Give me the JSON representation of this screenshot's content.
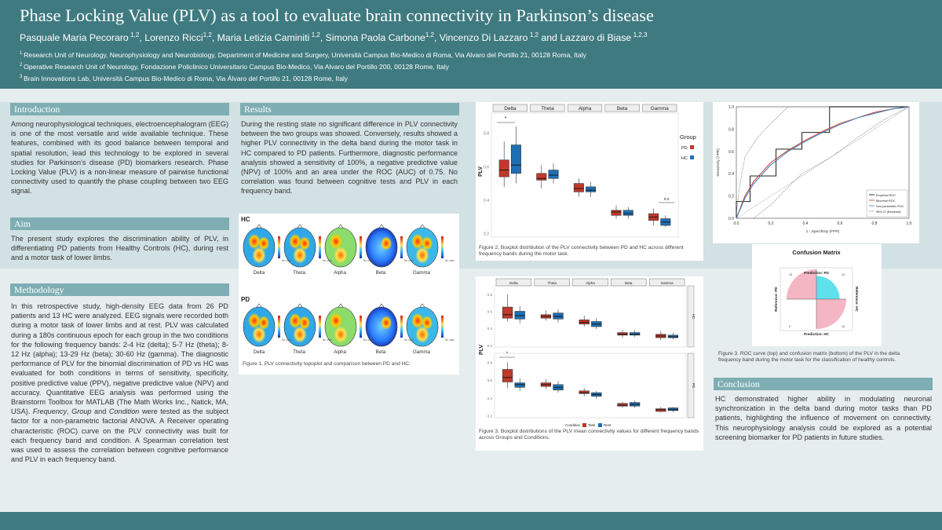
{
  "header": {
    "title": "Phase Locking Value (PLV) as a tool to evaluate brain connectivity in Parkinson’s disease",
    "authors": [
      {
        "name": "Pasquale Maria Pecoraro",
        "sup": "1,2"
      },
      {
        "name": "Lorenzo Ricci",
        "sup": "1,2"
      },
      {
        "name": "Maria Letizia Caminiti",
        "sup": "1,2"
      },
      {
        "name": "Simona Paola Carbone",
        "sup": "1,2"
      },
      {
        "name": "Vincenzo Di Lazzaro",
        "sup": "1,2"
      },
      {
        "name": "Lazzaro di Biase",
        "sup": "1,2,3"
      }
    ],
    "authors_connector": "and",
    "affiliations": [
      {
        "sup": "1",
        "text": "Research Unit of Neurology, Neurophysiology and Neurobiology, Department of Medicine and Surgery, Università Campus Bio-Medico di Roma, Via Alvaro del Portillo 21, 00128 Roma, Italy"
      },
      {
        "sup": "2",
        "text": "Operative Research Unit of Neurology, Fondazione Policlinico Universitario Campus Bio-Medico, Via Alvaro del Portillo 200, 00128 Rome, Italy"
      },
      {
        "sup": "3",
        "text": "Brain Innovations Lab, Università Campus Bio-Medico di Roma, Via Álvaro del Portillo 21, 00128 Rome, Italy"
      }
    ]
  },
  "sections": {
    "introduction": {
      "title": "Introduction",
      "text": "Among neurophysiological techniques, electroencephalogram (EEG) is one of the most versatile and wide available technique. These features, combined with its good balance between temporal and spatial resolution, lead this technology to be explored in several studies for Parkinson’s disease (PD) biomarkers research. Phase Locking Value (PLV) is a non-linear measure of pairwise functional connectivity used to quantify the phase coupling between two EEG signal."
    },
    "aim": {
      "title": "Aim",
      "text": "The present study explores the discrimination ability of PLV, in differentiating PD patients from Healthy Controls (HC), during rest and a motor task of lower limbs."
    },
    "methodology": {
      "title": "Methodology",
      "text_1": "In this retrospective study, high-density EEG data from 26 PD patients and 13 HC were analyzed. EEG signals were recorded both during a motor task of lower limbs and at rest. PLV was calculated during a 180s continuous epoch for each group in the two conditions for the following frequency bands: 2-4 Hz (delta); 5-7 Hz (theta); 8-12 Hz (alpha); 13-29 Hz (beta); 30-60 Hz (gamma). The diagnostic performance of PLV for the binomial discrimination of PD vs HC was evaluated for both conditions in terms of sensitivity, specificity, positive predictive value (PPV), negative predictive value (NPV) and accuracy. Quantitative EEG analysis was performed using the Brainstorm Toolbox for MATLAB (The Math Works Inc., Natick, MA, USA).",
      "italic_frequency": "Frequency",
      "sep_1": ", ",
      "italic_group": "Group",
      "sep_2": " and ",
      "italic_condition": "Condition",
      "text_2": " were tested as the subject factor for a non-parametric factorial ANOVA. A Receiver operating characteristic (ROC) curve on the PLV connectivity was built for each frequency band and condition. A Spearman correlation test was used to assess the correlation between cognitive performance and PLV in each frequency band."
    },
    "results": {
      "title": "Results",
      "text": "During the resting state no significant difference in PLV connectivity between the two groups was showed. Conversely, results showed a higher PLV connectivity in the delta band during the motor task in HC compared to PD patients. Furthermore, diagnostic performance analysis showed a sensitivity of 100%, a negative predictive value (NPV) of 100% and an area under the ROC (AUC) of 0.75. No correlation was found between cognitive tests and PLV in each frequency band."
    },
    "conclusion": {
      "title": "Conclusion",
      "text": "HC demonstrated higher ability in modulating neuronal synchronization in the delta band during motor tasks than PD patients, highlighting the influence of movement on connectivity. This neurophysiology analysis could be explored as a potential screening biomarker for PD patients in future studies."
    }
  },
  "figure1": {
    "caption": "Figure 1. PLV connectivity topoplot and comparison between PD and HC.",
    "row_labels": [
      "HC",
      "PD"
    ],
    "bands": [
      "Delta",
      "Theta",
      "Alpha",
      "Beta",
      "Gamma"
    ],
    "colorbar_label": "No units"
  },
  "figure2": {
    "caption": "Figure 2. Boxplot distribution of the PLV connectivity between PD and HC across different frequency bands during the motor task.",
    "ylabel": "PLV",
    "legend_title": "Group",
    "legend_items": [
      "PD",
      "HC"
    ],
    "sig_star": "*",
    "ns_label": "n.s",
    "y_ticks": [
      "0.2",
      "0.4",
      "0.6",
      "0.8"
    ]
  },
  "figure3": {
    "caption": "Figure 3. Boxplot distributions of the PLV mean connectivity values for different frequency bands across Groups and Conditions.",
    "ylabel": "PLV",
    "legend_title": "Condition",
    "legend_items": [
      "Task",
      "Rest"
    ],
    "facet_labels": [
      "HC",
      "PD"
    ],
    "y_ticks": [
      "0.2",
      "0.4",
      "0.6",
      "0.8"
    ]
  },
  "figure_roc": {
    "caption": "Figure 3. ROC curve (top) and confusion matrix (bottom) of the PLV in the delta frequency band during the motor task for the classification of healthy controls.",
    "xlabel": "1 - Specificity (FPR)",
    "ylabel": "Sensitivity (TPR)",
    "ticks": [
      "0.0",
      "0.2",
      "0.4",
      "0.6",
      "0.8",
      "1.0"
    ],
    "legend": [
      "Empirical ROC",
      "Binormal ROC",
      "Non-parametric ROC",
      "95% CI (Empirical)"
    ],
    "cm_title": "Confusion Matrix",
    "cm_pred_pd": "Prediction: PD",
    "cm_pred_hc": "Prediction: HC",
    "cm_ref_pd": "Reference: PD",
    "cm_ref_hc": "Reference: HC",
    "cm_cells": [
      "13",
      "13",
      "0",
      "13"
    ]
  },
  "chart_data": [
    {
      "type": "box",
      "title": "",
      "ylabel": "PLV",
      "categories": [
        "Delta",
        "Theta",
        "Alpha",
        "Beta",
        "Gamma"
      ],
      "ylim": [
        0.18,
        0.92
      ],
      "series": [
        {
          "name": "PD",
          "color": "#c0392b",
          "boxes": [
            {
              "q1": 0.54,
              "med": 0.58,
              "q3": 0.64,
              "lo": 0.48,
              "hi": 0.75
            },
            {
              "q1": 0.52,
              "med": 0.53,
              "q3": 0.56,
              "lo": 0.47,
              "hi": 0.61
            },
            {
              "q1": 0.45,
              "med": 0.47,
              "q3": 0.5,
              "lo": 0.42,
              "hi": 0.53
            },
            {
              "q1": 0.31,
              "med": 0.33,
              "q3": 0.34,
              "lo": 0.29,
              "hi": 0.37
            },
            {
              "q1": 0.28,
              "med": 0.3,
              "q3": 0.32,
              "lo": 0.25,
              "hi": 0.35
            }
          ]
        },
        {
          "name": "HC",
          "color": "#1f6fb4",
          "boxes": [
            {
              "q1": 0.56,
              "med": 0.61,
              "q3": 0.73,
              "lo": 0.5,
              "hi": 0.84
            },
            {
              "q1": 0.53,
              "med": 0.55,
              "q3": 0.58,
              "lo": 0.5,
              "hi": 0.62
            },
            {
              "q1": 0.45,
              "med": 0.46,
              "q3": 0.48,
              "lo": 0.42,
              "hi": 0.51
            },
            {
              "q1": 0.31,
              "med": 0.32,
              "q3": 0.34,
              "lo": 0.29,
              "hi": 0.36
            },
            {
              "q1": 0.25,
              "med": 0.27,
              "q3": 0.29,
              "lo": 0.24,
              "hi": 0.31
            }
          ]
        }
      ]
    },
    {
      "type": "box",
      "title": "",
      "ylabel": "PLV",
      "facets": [
        {
          "name": "HC",
          "categories": [
            "Delta",
            "Theta",
            "Alpha",
            "Beta",
            "Gamma"
          ],
          "series": [
            {
              "name": "Task",
              "color": "#c0392b",
              "boxes": [
                {
                  "q1": 0.52,
                  "med": 0.56,
                  "q3": 0.65,
                  "lo": 0.48,
                  "hi": 0.8
                },
                {
                  "q1": 0.52,
                  "med": 0.54,
                  "q3": 0.56,
                  "lo": 0.49,
                  "hi": 0.61
                },
                {
                  "q1": 0.45,
                  "med": 0.47,
                  "q3": 0.5,
                  "lo": 0.42,
                  "hi": 0.55
                },
                {
                  "q1": 0.32,
                  "med": 0.33,
                  "q3": 0.35,
                  "lo": 0.29,
                  "hi": 0.38
                },
                {
                  "q1": 0.29,
                  "med": 0.31,
                  "q3": 0.33,
                  "lo": 0.26,
                  "hi": 0.37
                }
              ]
            },
            {
              "name": "Rest",
              "color": "#1f6fb4",
              "boxes": [
                {
                  "q1": 0.51,
                  "med": 0.55,
                  "q3": 0.6,
                  "lo": 0.46,
                  "hi": 0.66
                },
                {
                  "q1": 0.51,
                  "med": 0.54,
                  "q3": 0.58,
                  "lo": 0.47,
                  "hi": 0.62
                },
                {
                  "q1": 0.42,
                  "med": 0.45,
                  "q3": 0.48,
                  "lo": 0.39,
                  "hi": 0.52
                },
                {
                  "q1": 0.32,
                  "med": 0.33,
                  "q3": 0.35,
                  "lo": 0.3,
                  "hi": 0.38
                },
                {
                  "q1": 0.29,
                  "med": 0.3,
                  "q3": 0.32,
                  "lo": 0.27,
                  "hi": 0.35
                }
              ]
            }
          ]
        },
        {
          "name": "PD",
          "categories": [
            "Delta",
            "Theta",
            "Alpha",
            "Beta",
            "Gamma"
          ],
          "series": [
            {
              "name": "Task",
              "color": "#c0392b",
              "boxes": [
                {
                  "q1": 0.58,
                  "med": 0.63,
                  "q3": 0.72,
                  "lo": 0.51,
                  "hi": 0.8
                },
                {
                  "q1": 0.53,
                  "med": 0.55,
                  "q3": 0.57,
                  "lo": 0.5,
                  "hi": 0.61
                },
                {
                  "q1": 0.45,
                  "med": 0.46,
                  "q3": 0.48,
                  "lo": 0.42,
                  "hi": 0.51
                },
                {
                  "q1": 0.31,
                  "med": 0.32,
                  "q3": 0.34,
                  "lo": 0.29,
                  "hi": 0.36
                },
                {
                  "q1": 0.25,
                  "med": 0.27,
                  "q3": 0.28,
                  "lo": 0.24,
                  "hi": 0.3
                }
              ]
            },
            {
              "name": "Rest",
              "color": "#1f6fb4",
              "boxes": [
                {
                  "q1": 0.52,
                  "med": 0.55,
                  "q3": 0.57,
                  "lo": 0.48,
                  "hi": 0.62
                },
                {
                  "q1": 0.49,
                  "med": 0.52,
                  "q3": 0.55,
                  "lo": 0.46,
                  "hi": 0.59
                },
                {
                  "q1": 0.42,
                  "med": 0.44,
                  "q3": 0.46,
                  "lo": 0.39,
                  "hi": 0.48
                },
                {
                  "q1": 0.31,
                  "med": 0.33,
                  "q3": 0.35,
                  "lo": 0.29,
                  "hi": 0.37
                },
                {
                  "q1": 0.26,
                  "med": 0.27,
                  "q3": 0.29,
                  "lo": 0.24,
                  "hi": 0.3
                }
              ]
            }
          ]
        }
      ]
    },
    {
      "type": "line",
      "title": "",
      "xlabel": "1 - Specificity (FPR)",
      "ylabel": "Sensitivity (TPR)",
      "xlim": [
        0,
        1
      ],
      "ylim": [
        0,
        1
      ],
      "series": [
        {
          "name": "Empirical ROC",
          "color": "#000000",
          "x": [
            0,
            0,
            0.08,
            0.08,
            0.23,
            0.23,
            0.38,
            0.38,
            0.54,
            0.54,
            1
          ],
          "y": [
            0,
            0.15,
            0.15,
            0.38,
            0.38,
            0.62,
            0.62,
            0.77,
            0.77,
            1,
            1
          ]
        },
        {
          "name": "Binormal ROC",
          "color": "#c0392b",
          "x": [
            0,
            0.05,
            0.1,
            0.2,
            0.3,
            0.4,
            0.5,
            0.6,
            0.7,
            0.8,
            0.9,
            1
          ],
          "y": [
            0,
            0.2,
            0.33,
            0.5,
            0.61,
            0.7,
            0.78,
            0.85,
            0.9,
            0.95,
            0.98,
            1
          ]
        },
        {
          "name": "Non-parametric ROC",
          "color": "#3b7fb8",
          "x": [
            0,
            0.05,
            0.1,
            0.2,
            0.3,
            0.4,
            0.5,
            0.6,
            0.7,
            0.8,
            0.9,
            1
          ],
          "y": [
            0,
            0.18,
            0.31,
            0.48,
            0.6,
            0.69,
            0.77,
            0.84,
            0.9,
            0.94,
            0.98,
            1
          ]
        }
      ]
    }
  ]
}
